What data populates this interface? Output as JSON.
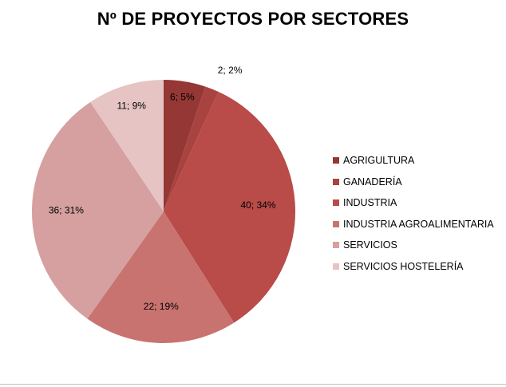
{
  "chart_data": {
    "type": "pie",
    "title": "Nº DE PROYECTOS POR SECTORES",
    "categories": [
      "AGRIGULTURA",
      "GANADERÍA",
      "INDUSTRIA",
      "INDUSTRIA AGROALIMENTARIA",
      "SERVICIOS",
      "SERVICIOS HOSTELERÍA"
    ],
    "values": [
      6,
      2,
      40,
      22,
      36,
      11
    ],
    "percent_labels": [
      "5%",
      "2%",
      "34%",
      "19%",
      "31%",
      "9%"
    ],
    "data_labels": [
      "6; 5%",
      "2; 2%",
      "40; 34%",
      "22; 19%",
      "36; 31%",
      "11; 9%"
    ],
    "colors": [
      "#953735",
      "#A9433F",
      "#B94B49",
      "#C97371",
      "#D5A09F",
      "#E5C4C3"
    ],
    "legend_position": "right"
  }
}
